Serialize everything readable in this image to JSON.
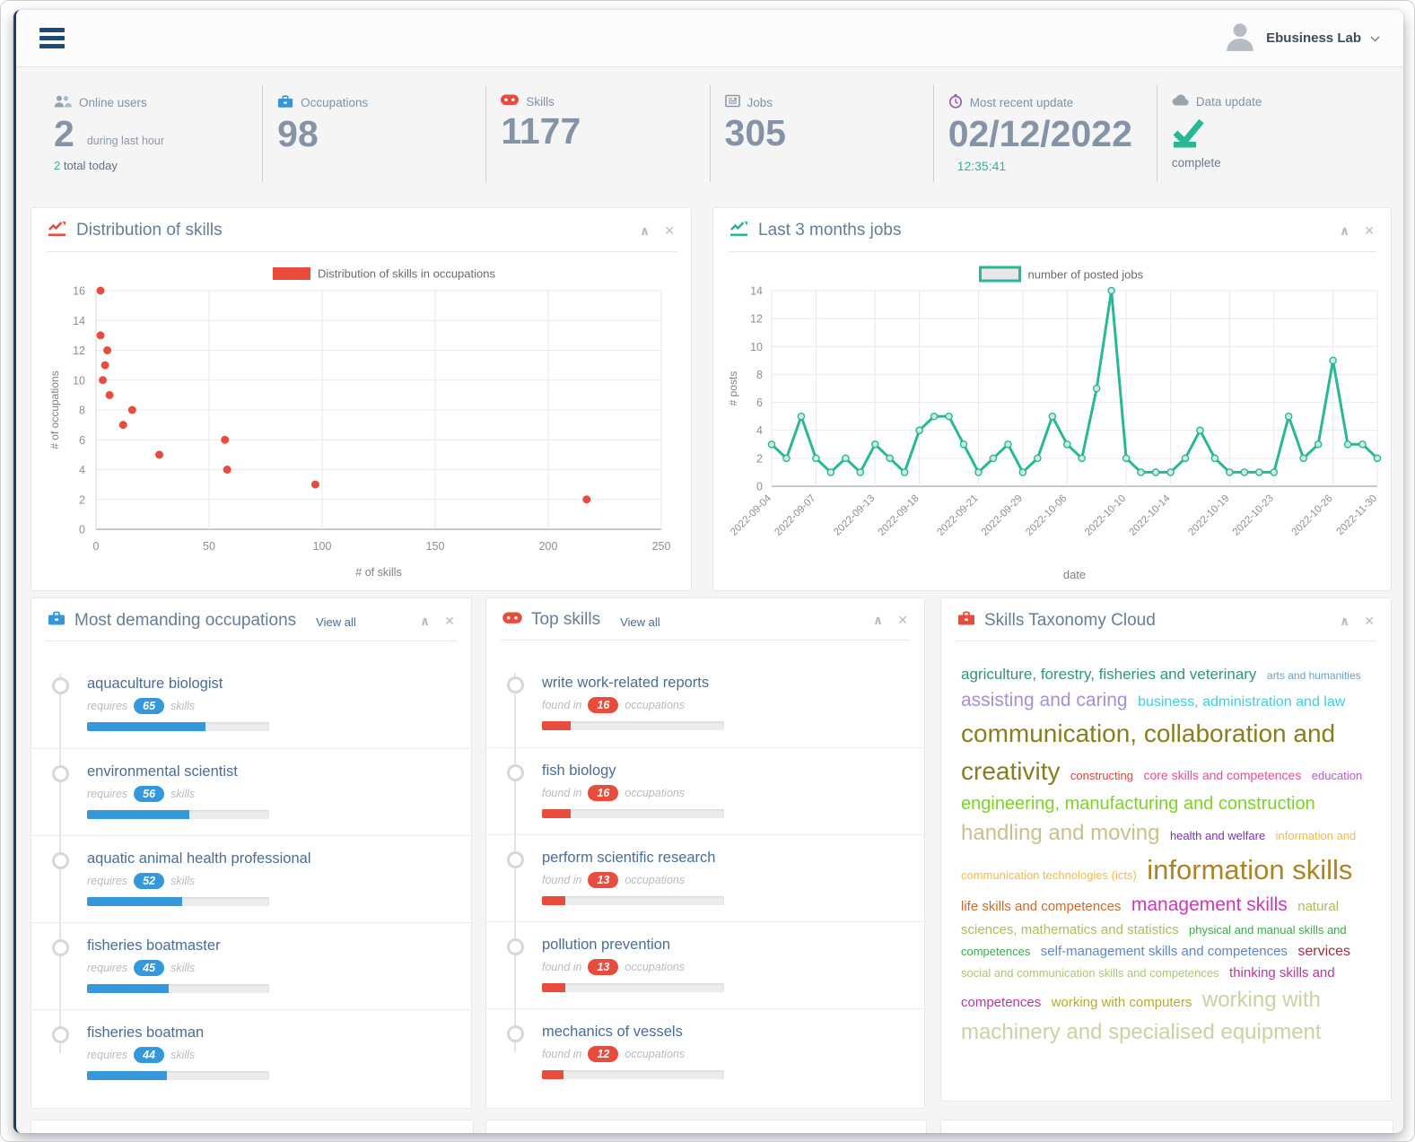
{
  "navbar": {
    "user_name": "Ebusiness Lab"
  },
  "controls": {
    "collapse": "∧",
    "close": "✕"
  },
  "stats": {
    "online_users": {
      "label": "Online users",
      "value": "2",
      "side_text": "during last hour",
      "footer_value": "2",
      "footer_text": "total today"
    },
    "occupations": {
      "label": "Occupations",
      "value": "98"
    },
    "skills": {
      "label": "Skills",
      "value": "1177"
    },
    "jobs": {
      "label": "Jobs",
      "value": "305"
    },
    "most_recent_update": {
      "label": "Most recent update",
      "value": "02/12/2022",
      "time": "12:35:41"
    },
    "data_update": {
      "label": "Data update",
      "status": "complete"
    }
  },
  "panels": {
    "distribution_of_skills": {
      "title": "Distribution of skills"
    },
    "last_3_months_jobs": {
      "title": "Last 3 months jobs"
    },
    "most_demanding_occupations": {
      "title": "Most demanding occupations",
      "view_all": "View all",
      "item_prefix": "requires",
      "item_suffix": "skills",
      "accent_color": "#3498db",
      "items": [
        {
          "name": "aquaculture biologist",
          "value": 65
        },
        {
          "name": "environmental scientist",
          "value": 56
        },
        {
          "name": "aquatic animal health professional",
          "value": 52
        },
        {
          "name": "fisheries boatmaster",
          "value": 45
        },
        {
          "name": "fisheries boatman",
          "value": 44
        }
      ]
    },
    "top_skills": {
      "title": "Top skills",
      "view_all": "View all",
      "item_prefix": "found in",
      "item_suffix": "occupations",
      "accent_color": "#e74c3c",
      "items": [
        {
          "name": "write work-related reports",
          "value": 16
        },
        {
          "name": "fish biology",
          "value": 16
        },
        {
          "name": "perform scientific research",
          "value": 13
        },
        {
          "name": "pollution prevention",
          "value": 13
        },
        {
          "name": "mechanics of vessels",
          "value": 12
        }
      ]
    },
    "skills_taxonomy_cloud": {
      "title": "Skills Taxonomy Cloud",
      "words": [
        {
          "text": "agriculture, forestry, fisheries and veterinary",
          "size": 17,
          "color": "#2f9678"
        },
        {
          "text": "arts and humanities",
          "size": 12,
          "color": "#67a1c9"
        },
        {
          "text": "assisting and caring",
          "size": 21,
          "color": "#a78fd1"
        },
        {
          "text": "business, administration and law",
          "size": 16,
          "color": "#3ecfdf"
        },
        {
          "text": "communication, collaboration and creativity",
          "size": 28,
          "color": "#867e20"
        },
        {
          "text": "constructing",
          "size": 13,
          "color": "#d94444"
        },
        {
          "text": "core skills and competences",
          "size": 14,
          "color": "#de4f9e"
        },
        {
          "text": "education",
          "size": 13,
          "color": "#b05fc4"
        },
        {
          "text": "engineering, manufacturing and construction",
          "size": 20,
          "color": "#7ed321"
        },
        {
          "text": "handling and moving",
          "size": 24,
          "color": "#c9c08f"
        },
        {
          "text": "health and welfare",
          "size": 13,
          "color": "#7d30c0"
        },
        {
          "text": "information and communication technologies (icts)",
          "size": 13,
          "color": "#f3bc45"
        },
        {
          "text": "information skills",
          "size": 31,
          "color": "#ad8326"
        },
        {
          "text": "life skills and competences",
          "size": 15,
          "color": "#cd6a2a"
        },
        {
          "text": "management skills",
          "size": 21,
          "color": "#c93ab3"
        },
        {
          "text": "natural sciences, mathematics and statistics",
          "size": 15,
          "color": "#a7bf5e"
        },
        {
          "text": "physical and manual skills and competences",
          "size": 13,
          "color": "#3ca94d"
        },
        {
          "text": "self-management skills and competences",
          "size": 15,
          "color": "#5e86c6"
        },
        {
          "text": "services",
          "size": 16,
          "color": "#9b2d45"
        },
        {
          "text": "social and communication skills and competences",
          "size": 13,
          "color": "#abc67a"
        },
        {
          "text": "thinking skills and competences",
          "size": 15,
          "color": "#b23a9c"
        },
        {
          "text": "working with computers",
          "size": 15,
          "color": "#b5ad2a"
        },
        {
          "text": "working with machinery and specialised equipment",
          "size": 24,
          "color": "#c6d4a2"
        }
      ]
    }
  },
  "chart_data": [
    {
      "type": "scatter",
      "title": "Distribution of skills",
      "legend": "Distribution of skills in occupations",
      "xlabel": "# of skills",
      "ylabel": "# of occupations",
      "xlim": [
        0,
        250
      ],
      "ylim": [
        0,
        16
      ],
      "x_ticks": [
        0,
        50,
        100,
        150,
        200,
        250
      ],
      "y_ticks": [
        0,
        2,
        4,
        6,
        8,
        10,
        12,
        14,
        16
      ],
      "color": "#e74c3c",
      "points": [
        [
          2,
          16
        ],
        [
          2,
          13
        ],
        [
          5,
          12
        ],
        [
          4,
          11
        ],
        [
          3,
          10
        ],
        [
          6,
          9
        ],
        [
          16,
          8
        ],
        [
          12,
          7
        ],
        [
          57,
          6
        ],
        [
          28,
          5
        ],
        [
          58,
          4
        ],
        [
          97,
          3
        ],
        [
          217,
          2
        ]
      ]
    },
    {
      "type": "line",
      "title": "Last 3 months jobs",
      "legend": "number of posted jobs",
      "xlabel": "date",
      "ylabel": "# posts",
      "ylim": [
        0,
        14
      ],
      "y_ticks": [
        0,
        2,
        4,
        6,
        8,
        10,
        12,
        14
      ],
      "color": "#2ab795",
      "values": [
        3,
        2,
        5,
        2,
        1,
        2,
        1,
        3,
        2,
        1,
        4,
        5,
        5,
        3,
        1,
        2,
        3,
        1,
        2,
        5,
        3,
        2,
        7,
        14,
        2,
        1,
        1,
        1,
        2,
        4,
        2,
        1,
        1,
        1,
        1,
        5,
        2,
        3,
        9,
        3,
        3,
        2
      ],
      "labels": [
        "2022-09-04",
        "2022-09-07",
        "2022-09-13",
        "2022-09-18",
        "2022-09-21",
        "2022-09-29",
        "2022-10-06",
        "2022-10-10",
        "2022-10-14",
        "2022-10-19",
        "2022-10-23",
        "2022-10-26",
        "2022-11-30"
      ],
      "label_indices": [
        0,
        3,
        7,
        10,
        14,
        17,
        20,
        24,
        27,
        31,
        34,
        38,
        41
      ]
    }
  ]
}
